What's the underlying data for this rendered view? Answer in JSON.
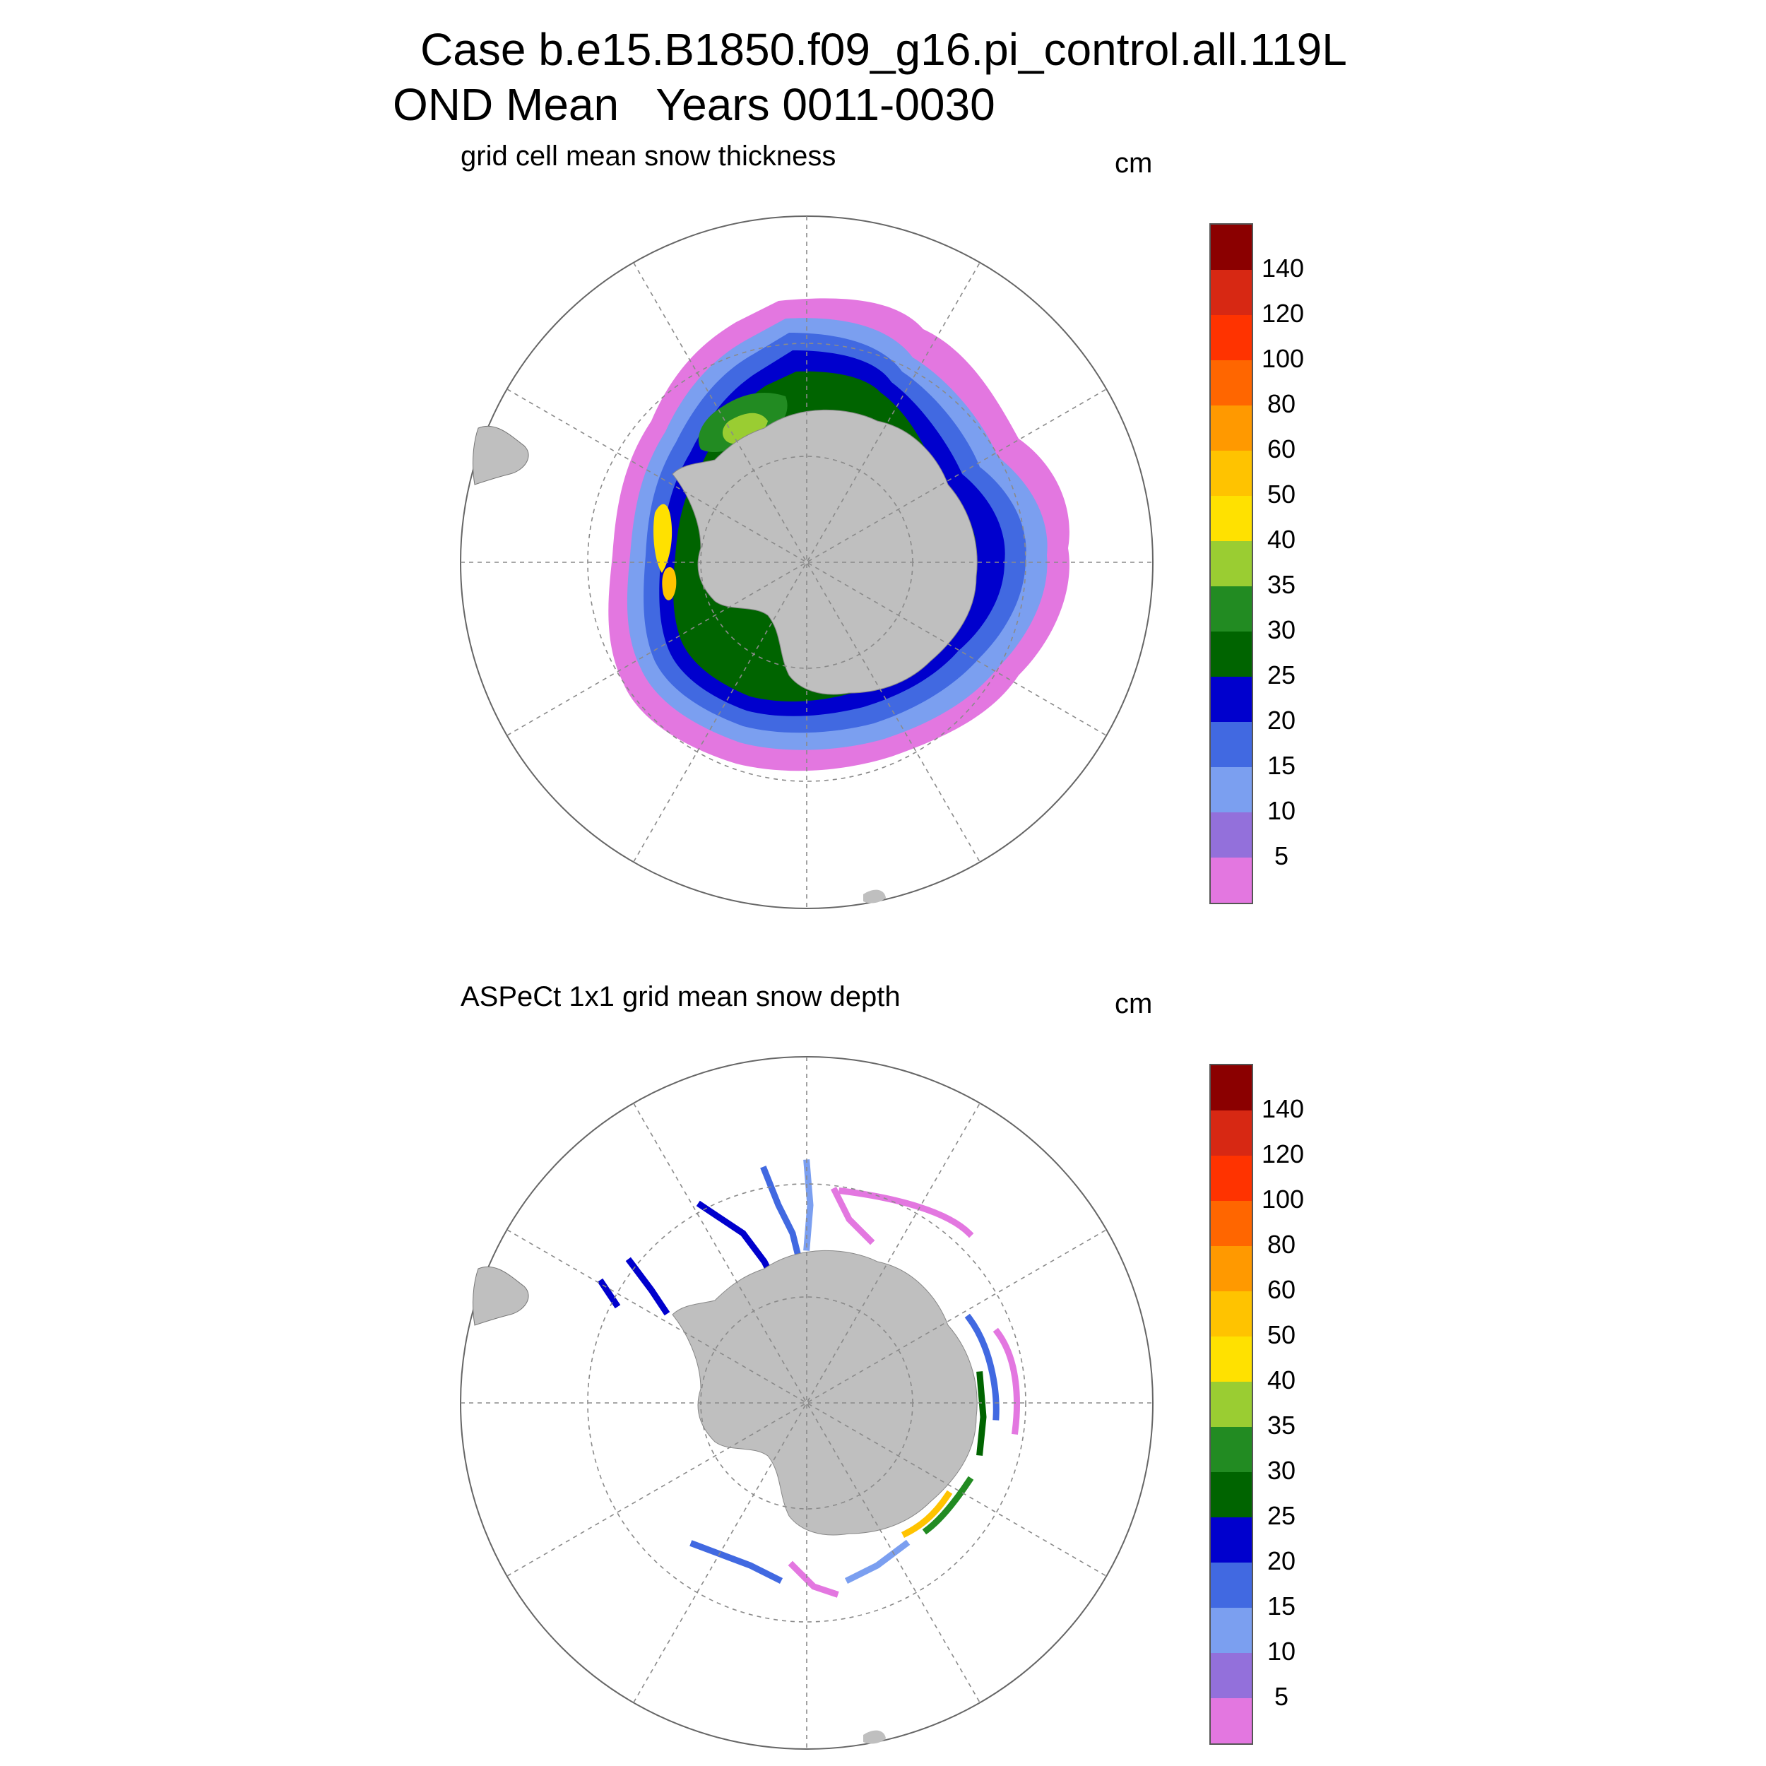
{
  "title_line1": "Case b.e15.B1850.f09_g16.pi_control.all.119L",
  "title_line2": "OND Mean   Years 0011-0030",
  "panels": [
    {
      "title": "grid cell mean snow thickness",
      "units": "cm"
    },
    {
      "title": "ASPeCt 1x1 grid mean snow depth",
      "units": "cm"
    }
  ],
  "colorbar": {
    "levels": [
      "140",
      "120",
      "100",
      "80",
      "60",
      "50",
      "40",
      "35",
      "30",
      "25",
      "20",
      "15",
      "10",
      "5"
    ],
    "colors": [
      "#8b0000",
      "#d72813",
      "#ff3300",
      "#ff6600",
      "#ff9900",
      "#ffc300",
      "#ffe100",
      "#9acd32",
      "#228b22",
      "#006400",
      "#0000cd",
      "#4169e1",
      "#7b9ff0",
      "#9370db",
      "#e377e0"
    ]
  },
  "colors": {
    "land": "#bfbfbf",
    "ocean": "#ffffff",
    "grid": "#8a8a8a"
  }
}
